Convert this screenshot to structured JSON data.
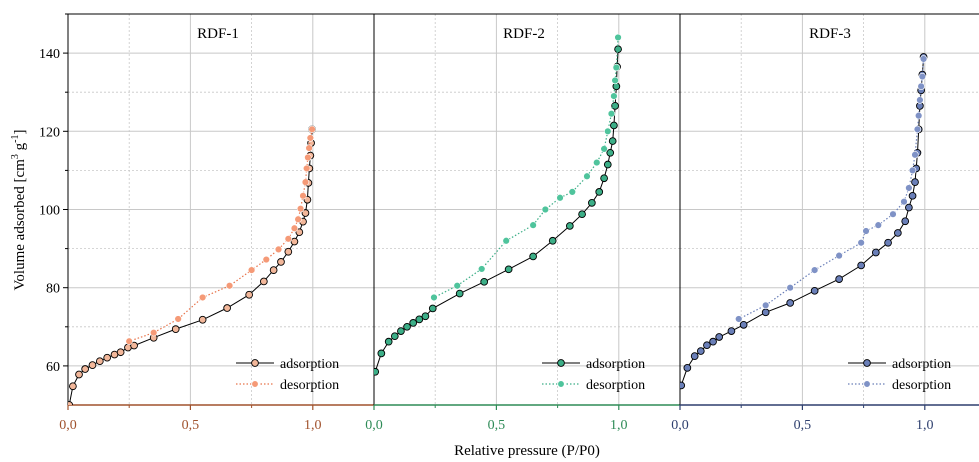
{
  "figure": {
    "ylabel": "Volume adsorbed [cm",
    "ylabel_sup1": "3",
    "ylabel_mid": " g",
    "ylabel_sup2": "-1",
    "ylabel_end": "]",
    "xlabel": "Relative pressure (P/P0)"
  },
  "chart_data": [
    {
      "type": "line",
      "title": "RDF-1",
      "xlim": [
        0,
        1.25
      ],
      "ylim": [
        50,
        150
      ],
      "x_ticks": [
        0,
        0.5,
        1.0
      ],
      "x_tick_labels": [
        "0,0",
        "0,5",
        "1,0"
      ],
      "y_ticks": [
        60,
        80,
        100,
        120,
        140
      ],
      "y_tick_labels": [
        "60",
        "80",
        "100",
        "120",
        "140"
      ],
      "x_axis_color": "#a0522d",
      "grid": true,
      "legend_position": "bottom-right",
      "series": [
        {
          "name": "adsorption",
          "style": "solid",
          "line_color": "#000000",
          "marker_color": "#f2b79a",
          "points": [
            [
              0.005,
              50
            ],
            [
              0.02,
              54.8
            ],
            [
              0.045,
              57.8
            ],
            [
              0.07,
              59.2
            ],
            [
              0.1,
              60.2
            ],
            [
              0.13,
              61.2
            ],
            [
              0.16,
              62.1
            ],
            [
              0.19,
              62.9
            ],
            [
              0.215,
              63.5
            ],
            [
              0.245,
              64.7
            ],
            [
              0.27,
              65.2
            ],
            [
              0.35,
              67.2
            ],
            [
              0.44,
              69.4
            ],
            [
              0.55,
              71.8
            ],
            [
              0.65,
              74.8
            ],
            [
              0.74,
              78.2
            ],
            [
              0.8,
              81.6
            ],
            [
              0.84,
              84.5
            ],
            [
              0.87,
              86.6
            ],
            [
              0.9,
              89.2
            ],
            [
              0.925,
              91.8
            ],
            [
              0.945,
              94.2
            ],
            [
              0.96,
              96.9
            ],
            [
              0.97,
              99.1
            ],
            [
              0.978,
              102.5
            ],
            [
              0.982,
              106.8
            ],
            [
              0.986,
              110.5
            ],
            [
              0.99,
              113.8
            ],
            [
              0.993,
              117
            ],
            [
              0.997,
              120.5
            ]
          ]
        },
        {
          "name": "desorption",
          "style": "dotted",
          "line_color": "#e8734a",
          "marker_color": "#f59a77",
          "points": [
            [
              0.997,
              120.5
            ],
            [
              0.99,
              118.3
            ],
            [
              0.985,
              115.7
            ],
            [
              0.98,
              113.3
            ],
            [
              0.975,
              110.5
            ],
            [
              0.97,
              107
            ],
            [
              0.96,
              103.5
            ],
            [
              0.95,
              100.2
            ],
            [
              0.94,
              97.5
            ],
            [
              0.925,
              95.2
            ],
            [
              0.9,
              92.5
            ],
            [
              0.86,
              89.8
            ],
            [
              0.81,
              87.2
            ],
            [
              0.75,
              84.5
            ],
            [
              0.66,
              80.5
            ],
            [
              0.55,
              77.5
            ],
            [
              0.45,
              72
            ],
            [
              0.35,
              68.5
            ],
            [
              0.25,
              66.3
            ]
          ]
        }
      ]
    },
    {
      "type": "line",
      "title": "RDF-2",
      "xlim": [
        0,
        1.25
      ],
      "ylim": [
        50,
        150
      ],
      "x_ticks": [
        0,
        0.5,
        1.0
      ],
      "x_tick_labels": [
        "0,0",
        "0,5",
        "1,0"
      ],
      "x_axis_color": "#2e8b57",
      "grid": true,
      "legend_position": "bottom-right",
      "series": [
        {
          "name": "adsorption",
          "style": "solid",
          "line_color": "#000000",
          "marker_color": "#3cae87",
          "points": [
            [
              0.005,
              58.5
            ],
            [
              0.03,
              63.2
            ],
            [
              0.06,
              66.2
            ],
            [
              0.085,
              67.6
            ],
            [
              0.11,
              68.9
            ],
            [
              0.135,
              70
            ],
            [
              0.16,
              71
            ],
            [
              0.185,
              71.9
            ],
            [
              0.21,
              72.7
            ],
            [
              0.24,
              74.7
            ],
            [
              0.35,
              78.5
            ],
            [
              0.45,
              81.5
            ],
            [
              0.55,
              84.7
            ],
            [
              0.65,
              88
            ],
            [
              0.73,
              92
            ],
            [
              0.8,
              95.8
            ],
            [
              0.85,
              98.8
            ],
            [
              0.89,
              101.7
            ],
            [
              0.92,
              104.5
            ],
            [
              0.94,
              108
            ],
            [
              0.955,
              111.5
            ],
            [
              0.965,
              114.5
            ],
            [
              0.975,
              117.5
            ],
            [
              0.98,
              121.5
            ],
            [
              0.985,
              126.5
            ],
            [
              0.99,
              131.5
            ],
            [
              0.993,
              136.5
            ],
            [
              0.997,
              141
            ]
          ]
        },
        {
          "name": "desorption",
          "style": "dotted",
          "line_color": "#3cae87",
          "marker_color": "#4fc49c",
          "points": [
            [
              0.997,
              144
            ],
            [
              0.99,
              136.3
            ],
            [
              0.985,
              133
            ],
            [
              0.98,
              129
            ],
            [
              0.97,
              124.5
            ],
            [
              0.955,
              120
            ],
            [
              0.94,
              115.5
            ],
            [
              0.91,
              112
            ],
            [
              0.87,
              108.5
            ],
            [
              0.81,
              104.5
            ],
            [
              0.76,
              103
            ],
            [
              0.7,
              100
            ],
            [
              0.65,
              96
            ],
            [
              0.54,
              92
            ],
            [
              0.44,
              84.8
            ],
            [
              0.34,
              80.5
            ],
            [
              0.245,
              77.5
            ]
          ]
        }
      ]
    },
    {
      "type": "line",
      "title": "RDF-3",
      "xlim": [
        0,
        1.25
      ],
      "ylim": [
        50,
        150
      ],
      "x_ticks": [
        0,
        0.5,
        1.0
      ],
      "x_tick_labels": [
        "0,0",
        "0,5",
        "1,0"
      ],
      "x_axis_color": "#2e3f6e",
      "grid": true,
      "legend_position": "bottom-right",
      "series": [
        {
          "name": "adsorption",
          "style": "solid",
          "line_color": "#000000",
          "marker_color": "#6a7fb8",
          "points": [
            [
              0.005,
              55
            ],
            [
              0.03,
              59.5
            ],
            [
              0.06,
              62.5
            ],
            [
              0.085,
              63.8
            ],
            [
              0.11,
              65.3
            ],
            [
              0.135,
              66.2
            ],
            [
              0.16,
              67.4
            ],
            [
              0.21,
              68.9
            ],
            [
              0.26,
              70.5
            ],
            [
              0.35,
              73.7
            ],
            [
              0.45,
              76.1
            ],
            [
              0.55,
              79.2
            ],
            [
              0.65,
              82.2
            ],
            [
              0.74,
              85.7
            ],
            [
              0.8,
              89
            ],
            [
              0.85,
              91.5
            ],
            [
              0.89,
              94
            ],
            [
              0.92,
              97
            ],
            [
              0.935,
              100.5
            ],
            [
              0.95,
              103.5
            ],
            [
              0.96,
              107
            ],
            [
              0.965,
              110.5
            ],
            [
              0.97,
              114.5
            ],
            [
              0.975,
              120.5
            ],
            [
              0.98,
              126.5
            ],
            [
              0.985,
              130.5
            ],
            [
              0.99,
              134.5
            ],
            [
              0.995,
              139
            ]
          ]
        },
        {
          "name": "desorption",
          "style": "dotted",
          "line_color": "#6a7fb8",
          "marker_color": "#7f92c6",
          "points": [
            [
              0.995,
              138.5
            ],
            [
              0.99,
              134
            ],
            [
              0.985,
              131.5
            ],
            [
              0.98,
              128
            ],
            [
              0.975,
              124
            ],
            [
              0.97,
              120.5
            ],
            [
              0.96,
              114
            ],
            [
              0.95,
              110
            ],
            [
              0.935,
              105.5
            ],
            [
              0.915,
              102
            ],
            [
              0.87,
              98.8
            ],
            [
              0.81,
              96
            ],
            [
              0.76,
              94.5
            ],
            [
              0.74,
              91.5
            ],
            [
              0.65,
              88.2
            ],
            [
              0.55,
              84.5
            ],
            [
              0.45,
              80
            ],
            [
              0.35,
              75.5
            ],
            [
              0.24,
              72
            ]
          ]
        }
      ]
    }
  ]
}
